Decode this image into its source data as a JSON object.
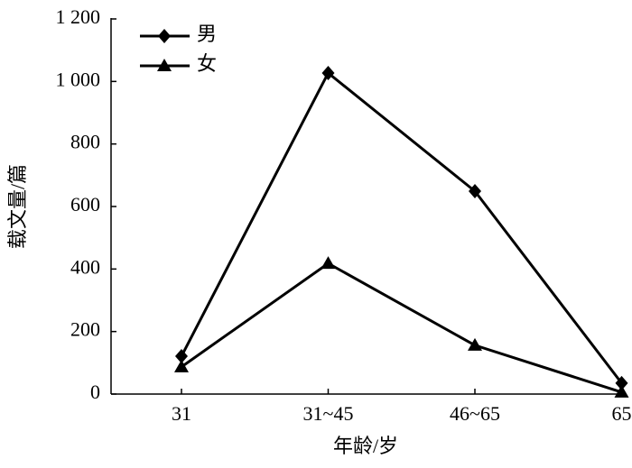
{
  "chart_data": {
    "type": "line",
    "xlabel": "年龄/岁",
    "ylabel": "载文量/篇",
    "categories": [
      "31",
      "31~45",
      "46~65",
      "65"
    ],
    "series": [
      {
        "name": "男",
        "color": "#000000",
        "marker": "diamond",
        "values": [
          121,
          1027,
          649,
          35
        ]
      },
      {
        "name": "女",
        "color": "#000000",
        "marker": "triangle",
        "values": [
          87,
          418,
          156,
          6
        ]
      }
    ],
    "ylim": [
      0,
      1200
    ],
    "yticks": [
      0,
      200,
      400,
      600,
      800,
      {
        "value": 1000,
        "label": "1 000"
      },
      {
        "value": 1200,
        "label": "1 200"
      }
    ],
    "legend": "top-left"
  }
}
